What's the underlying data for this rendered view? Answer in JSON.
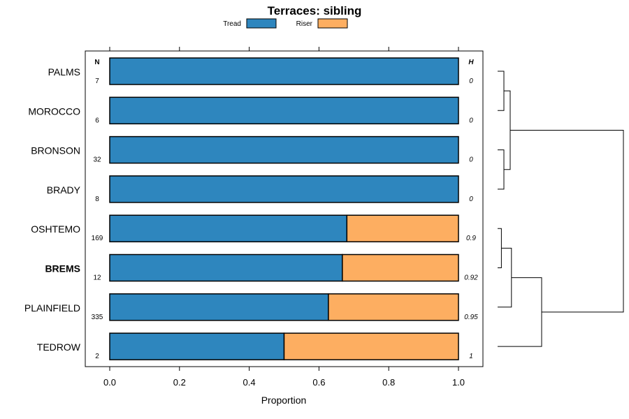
{
  "chart_data": {
    "type": "bar",
    "orientation": "horizontal",
    "stacked": true,
    "title": "Terraces: sibling",
    "xlabel": "Proportion",
    "ylabel": "",
    "xlim": [
      0,
      1
    ],
    "xticks": [
      "0.0",
      "0.2",
      "0.4",
      "0.6",
      "0.8",
      "1.0"
    ],
    "xtick_values": [
      0,
      0.2,
      0.4,
      0.6,
      0.8,
      1.0
    ],
    "legend_position": "top",
    "legend": [
      {
        "name": "Tread",
        "color": "#2E86BE"
      },
      {
        "name": "Riser",
        "color": "#FDAE61"
      }
    ],
    "n_header": "N",
    "h_header": "H",
    "categories": [
      "PALMS",
      "MOROCCO",
      "BRONSON",
      "BRADY",
      "OSHTEMO",
      "BREMS",
      "PLAINFIELD",
      "TEDROW"
    ],
    "highlighted": "BREMS",
    "series": [
      {
        "name": "Tread",
        "values": [
          1.0,
          1.0,
          1.0,
          1.0,
          0.68,
          0.667,
          0.627,
          0.5
        ]
      },
      {
        "name": "Riser",
        "values": [
          0.0,
          0.0,
          0.0,
          0.0,
          0.32,
          0.333,
          0.373,
          0.5
        ]
      }
    ],
    "n": [
      "7",
      "6",
      "32",
      "8",
      "169",
      "12",
      "335",
      "2"
    ],
    "h": [
      "0",
      "0",
      "0",
      "0",
      "0.9",
      "0.92",
      "0.95",
      "1"
    ],
    "dendrogram": {
      "merges": [
        {
          "left": "PALMS",
          "right": "MOROCCO",
          "height": 0.05
        },
        {
          "left": "BRONSON",
          "right": "BRADY",
          "height": 0.05
        },
        {
          "left": "c1",
          "right": "c2",
          "height": 0.1
        },
        {
          "left": "OSHTEMO",
          "right": "BREMS",
          "height": 0.03
        },
        {
          "left": "c4",
          "right": "PLAINFIELD",
          "height": 0.11
        },
        {
          "left": "c5",
          "right": "TEDROW",
          "height": 0.35
        },
        {
          "left": "c3",
          "right": "c6",
          "height": 1.0
        }
      ]
    }
  }
}
